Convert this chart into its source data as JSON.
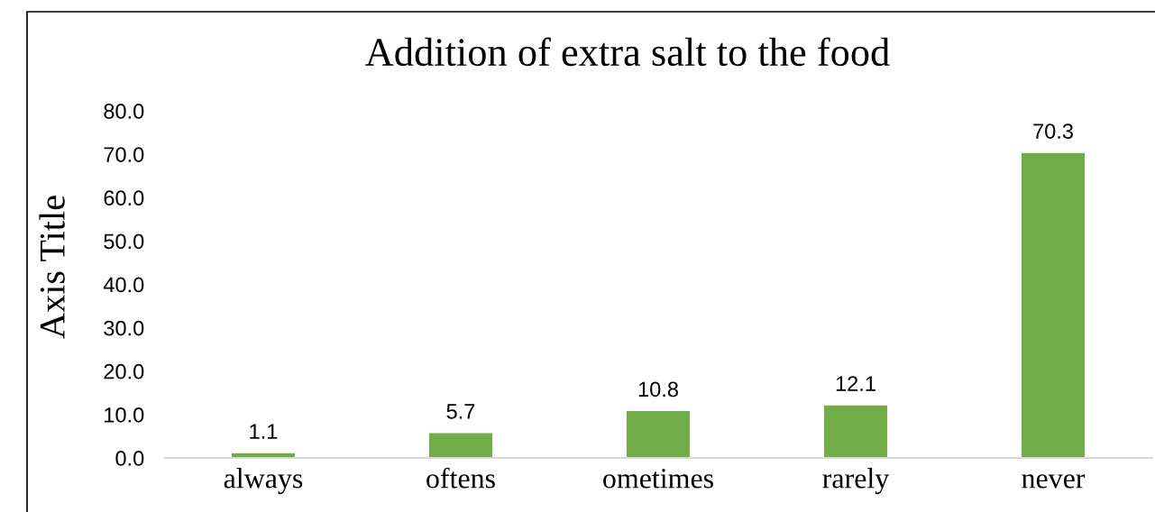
{
  "chart_data": {
    "type": "bar",
    "title": "Addition of extra salt to the food",
    "ylabel": "Axis Title",
    "categories": [
      "always",
      "oftens",
      "ometimes",
      "rarely",
      "never"
    ],
    "values": [
      1.1,
      5.7,
      10.8,
      12.1,
      70.3
    ],
    "color": "#70ad47",
    "ylim": [
      0,
      80
    ],
    "yticks": [
      {
        "value": 0,
        "label": "0.0"
      },
      {
        "value": 10,
        "label": "10.0"
      },
      {
        "value": 20,
        "label": "20.0"
      },
      {
        "value": 30,
        "label": "30.0"
      },
      {
        "value": 40,
        "label": "40.0"
      },
      {
        "value": 50,
        "label": "50.0"
      },
      {
        "value": 60,
        "label": "60.0"
      },
      {
        "value": 70,
        "label": "70.0"
      },
      {
        "value": 80,
        "label": "80.0"
      }
    ],
    "grid": false,
    "data_labels": true
  }
}
